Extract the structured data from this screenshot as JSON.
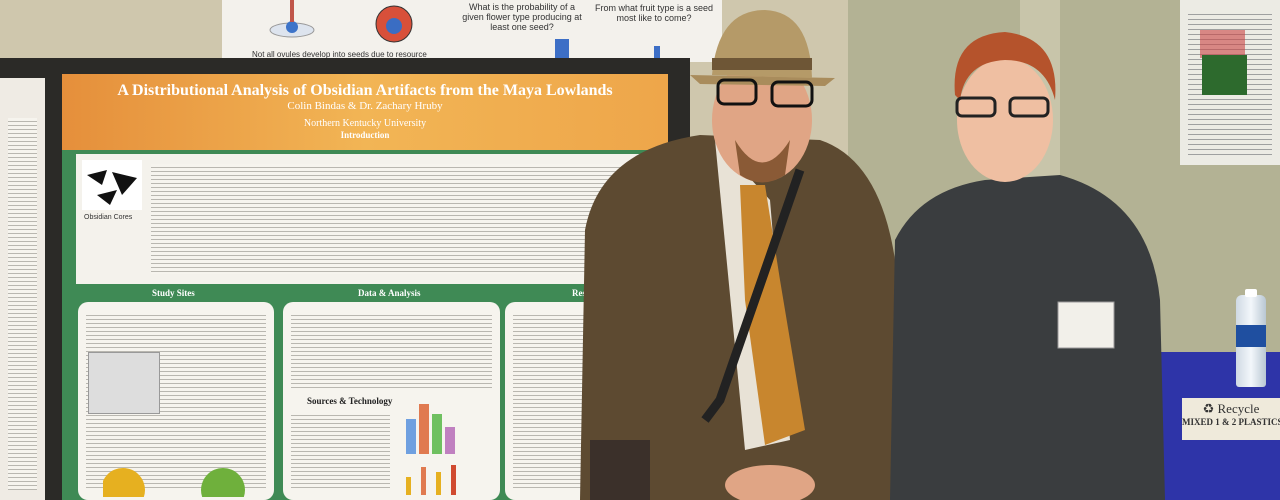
{
  "top_poster": {
    "question_1": "What is the probability of a given flower type producing at least one seed?",
    "question_2": "From what fruit type is a seed most like to come?",
    "bullet": "Not all ovules develop into seeds due to resource"
  },
  "poster": {
    "title": "A Distributional Analysis of Obsidian Artifacts from the Maya Lowlands",
    "authors": "Colin Bindas & Dr. Zachary Hruby",
    "university": "Northern Kentucky University",
    "sections": {
      "introduction": "Introduction",
      "study_sites": "Study Sites",
      "data_analysis": "Data & Analysis",
      "results": "Results",
      "sources": "Sources & Technology"
    },
    "image_caption": "Obsidian Cores"
  },
  "recycle_bin": {
    "label": "Recycle",
    "sublabel": "MIXED 1 & 2 PLASTICS"
  },
  "colors": {
    "poster_green": "#3f8a55",
    "poster_orange": "#f2b555",
    "bin_blue": "#2e34a8"
  }
}
